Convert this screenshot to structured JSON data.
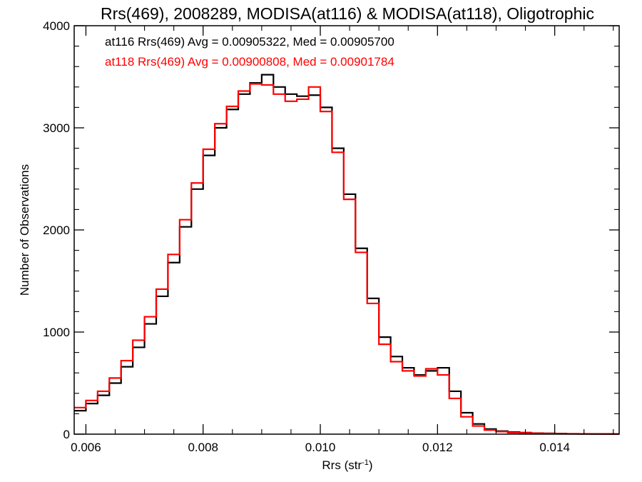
{
  "chart_data": {
    "type": "histogram",
    "title": "Rrs(469), 2008289, MODISA(at116) & MODISA(at118), Oligotrophic",
    "xlabel_base": "Rrs (str",
    "xlabel_sup": "-1",
    "xlabel_close": ")",
    "ylabel": "Number of Observations",
    "xlim": [
      0.0058,
      0.0151
    ],
    "ylim": [
      0,
      4000
    ],
    "x_ticks": [
      0.006,
      0.008,
      0.01,
      0.012,
      0.014
    ],
    "x_tick_labels": [
      "0.006",
      "0.008",
      "0.010",
      "0.012",
      "0.014"
    ],
    "y_ticks": [
      0,
      1000,
      2000,
      3000,
      4000
    ],
    "y_tick_labels": [
      "0",
      "1000",
      "2000",
      "3000",
      "4000"
    ],
    "grid": false,
    "legend": [
      {
        "text": "at116 Rrs(469) Avg = 0.00905322, Med = 0.00905700",
        "color": "#000000"
      },
      {
        "text": "at118 Rrs(469) Avg = 0.00900808, Med = 0.00901784",
        "color": "#ff0000"
      }
    ],
    "series": [
      {
        "name": "at116",
        "color": "#000000",
        "x": [
          0.0058,
          0.006,
          0.0062,
          0.0064,
          0.0066,
          0.0068,
          0.007,
          0.0072,
          0.0074,
          0.0076,
          0.0078,
          0.008,
          0.0082,
          0.0084,
          0.0086,
          0.0088,
          0.009,
          0.0092,
          0.0094,
          0.0096,
          0.0098,
          0.01,
          0.0102,
          0.0104,
          0.0106,
          0.0108,
          0.011,
          0.0112,
          0.0114,
          0.0116,
          0.0118,
          0.012,
          0.0122,
          0.0124,
          0.0126,
          0.0128,
          0.013,
          0.0132,
          0.0134,
          0.0136,
          0.0138,
          0.014,
          0.0142,
          0.0144,
          0.0146,
          0.0148,
          0.015
        ],
        "y": [
          230,
          300,
          380,
          500,
          660,
          850,
          1080,
          1350,
          1680,
          2030,
          2400,
          2730,
          3000,
          3180,
          3330,
          3440,
          3520,
          3400,
          3330,
          3310,
          3320,
          3200,
          2800,
          2350,
          1820,
          1330,
          950,
          760,
          650,
          580,
          620,
          650,
          420,
          210,
          100,
          50,
          30,
          20,
          15,
          10,
          8,
          5,
          4,
          3,
          2,
          2,
          1
        ]
      },
      {
        "name": "at118",
        "color": "#ff0000",
        "x": [
          0.0058,
          0.006,
          0.0062,
          0.0064,
          0.0066,
          0.0068,
          0.007,
          0.0072,
          0.0074,
          0.0076,
          0.0078,
          0.008,
          0.0082,
          0.0084,
          0.0086,
          0.0088,
          0.009,
          0.0092,
          0.0094,
          0.0096,
          0.0098,
          0.01,
          0.0102,
          0.0104,
          0.0106,
          0.0108,
          0.011,
          0.0112,
          0.0114,
          0.0116,
          0.0118,
          0.012,
          0.0122,
          0.0124,
          0.0126,
          0.0128,
          0.013,
          0.0132,
          0.0134,
          0.0136,
          0.0138,
          0.014,
          0.0142,
          0.0144,
          0.0146,
          0.0148,
          0.015
        ],
        "y": [
          260,
          330,
          420,
          550,
          720,
          920,
          1150,
          1420,
          1760,
          2100,
          2460,
          2790,
          3040,
          3210,
          3360,
          3430,
          3420,
          3330,
          3260,
          3280,
          3400,
          3160,
          2760,
          2300,
          1780,
          1280,
          880,
          710,
          620,
          570,
          640,
          580,
          350,
          170,
          80,
          40,
          25,
          15,
          12,
          8,
          6,
          4,
          3,
          2,
          2,
          1,
          1
        ]
      }
    ]
  }
}
